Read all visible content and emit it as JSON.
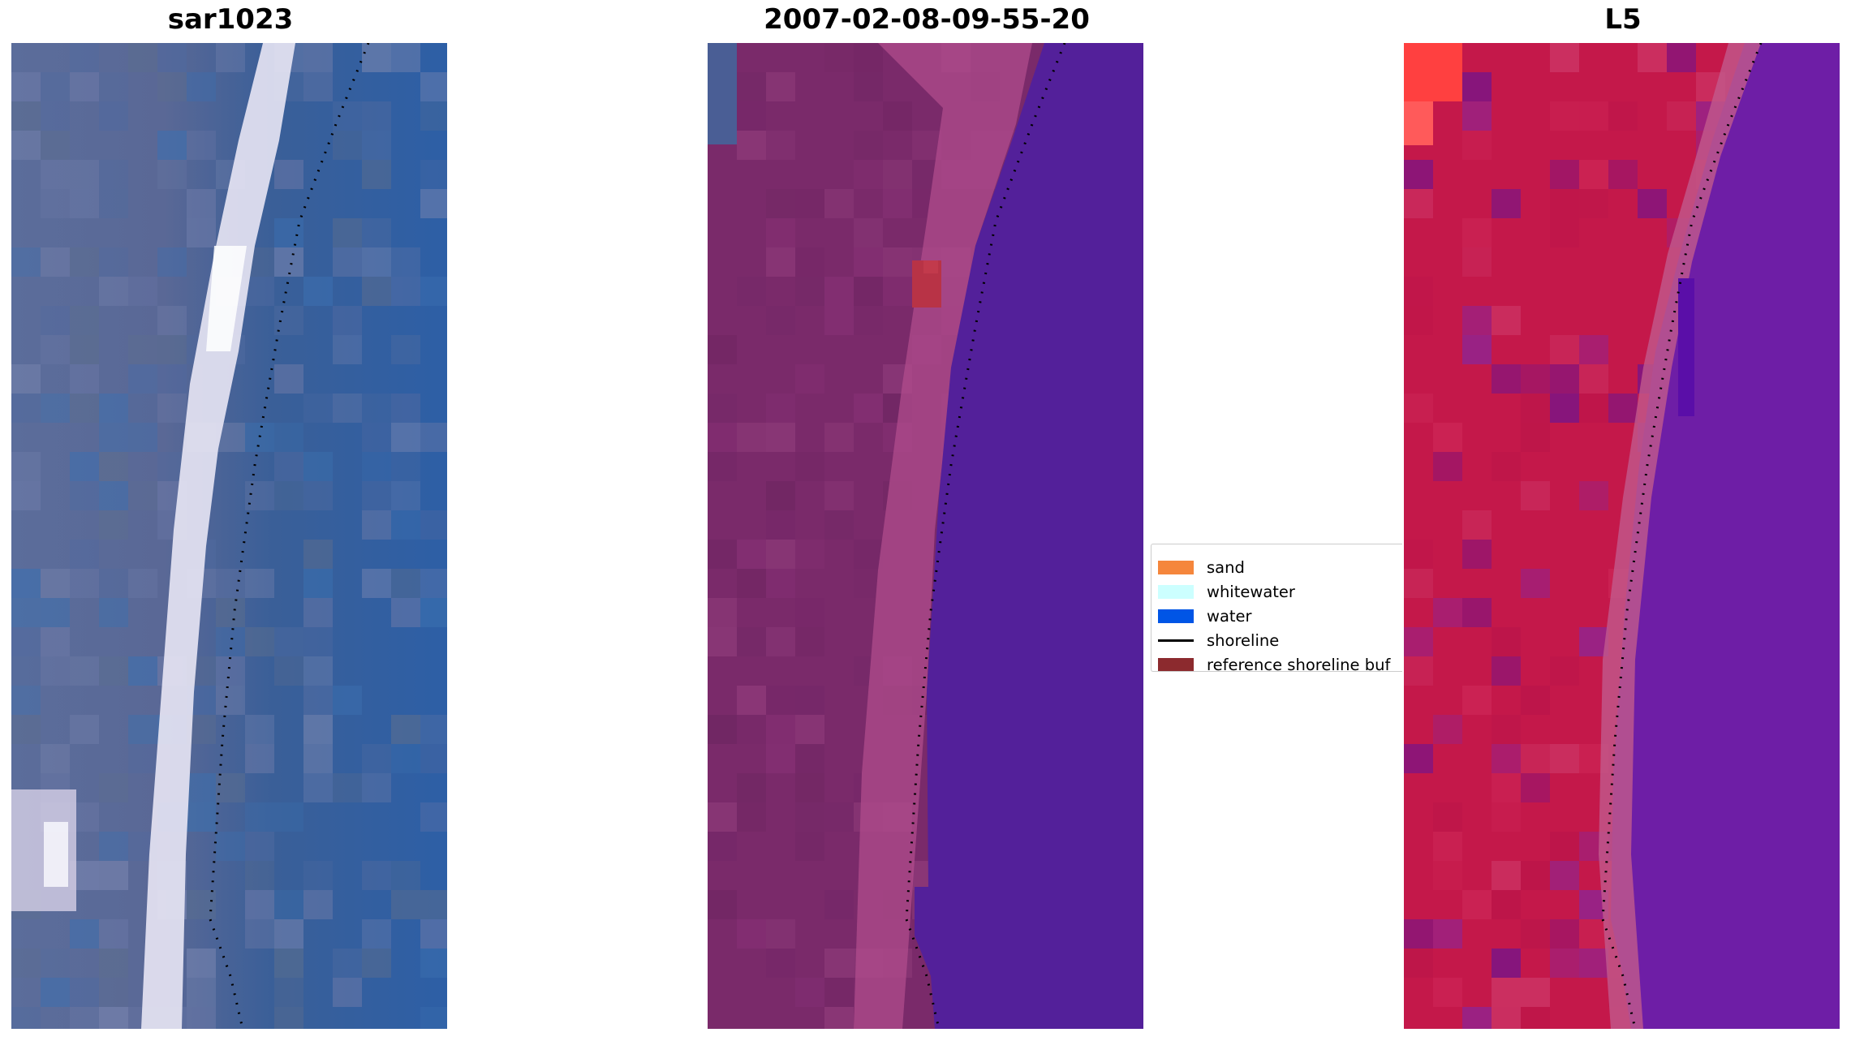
{
  "panels": [
    {
      "title": "sar1023"
    },
    {
      "title": "2007-02-08-09-55-20"
    },
    {
      "title": "L5"
    }
  ],
  "legend": {
    "items": [
      {
        "label": "sand",
        "color": "#f5863c"
      },
      {
        "label": "whitewater",
        "color": "#ccffff"
      },
      {
        "label": "water",
        "color": "#0055e6"
      },
      {
        "label": "shoreline",
        "color": "#000000"
      },
      {
        "label": "reference shoreline buf",
        "color": "#8c2a2e"
      }
    ]
  },
  "colors": {
    "rgb_land": "#5a6a9a",
    "rgb_water": "#2f66a8",
    "rgb_surf": "#f0f0fa",
    "class_land": "#7a2a68",
    "class_surf": "#b04c8c",
    "class_water": "#53209a",
    "class_buffer": "#b63448",
    "ndwi_land": "#c01848",
    "ndwi_water": "#6a1ea8"
  }
}
